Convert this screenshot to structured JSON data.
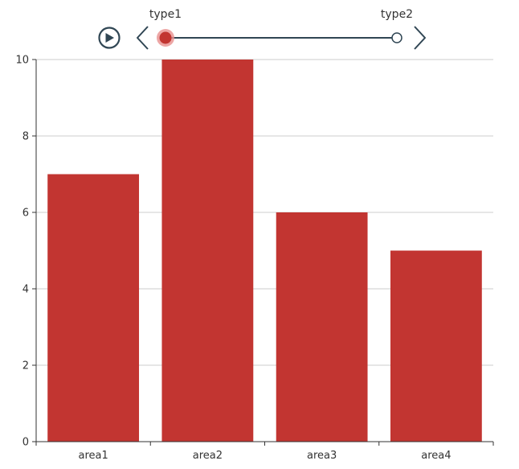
{
  "timeline": {
    "labels": [
      "type1",
      "type2"
    ],
    "current_index": 0,
    "play_icon": "play-icon",
    "prev_icon": "chevron-left-icon",
    "next_icon": "chevron-right-icon"
  },
  "chart_data": {
    "type": "bar",
    "title": "",
    "xlabel": "",
    "ylabel": "",
    "categories": [
      "area1",
      "area2",
      "area3",
      "area4"
    ],
    "series": [
      {
        "values": [
          7,
          10,
          6,
          5
        ]
      }
    ],
    "ylim": [
      0,
      10
    ],
    "yticks": [
      0,
      2,
      4,
      6,
      8,
      10
    ],
    "grid": true,
    "legend": "none",
    "colors": {
      "bar": "#c23531",
      "axis": "#333333",
      "grid": "#cccccc",
      "timeline": "#304654",
      "timeline_handle": "#c23531",
      "timeline_handle_glow": "#e8908e"
    }
  }
}
